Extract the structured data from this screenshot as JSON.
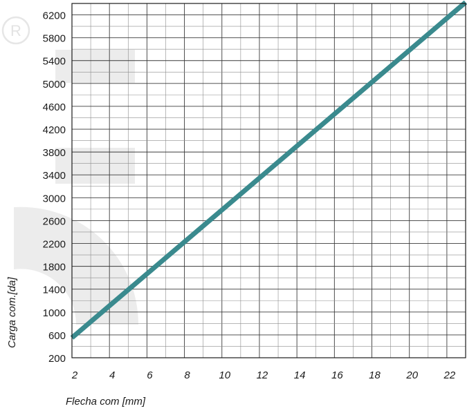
{
  "chart_data": {
    "type": "line",
    "xlabel": "Flecha com [mm]",
    "ylabel": "Carga com.[da]",
    "xlim": [
      2,
      23
    ],
    "ylim": [
      200,
      6400
    ],
    "x_ticks": [
      2,
      4,
      6,
      8,
      10,
      12,
      14,
      16,
      18,
      20,
      22
    ],
    "y_ticks": [
      200,
      600,
      1000,
      1400,
      1800,
      2200,
      2600,
      3000,
      3400,
      3800,
      4200,
      4600,
      5000,
      5400,
      5800,
      6200
    ],
    "grid": true,
    "x": [
      2,
      23
    ],
    "y": [
      550,
      6420
    ],
    "line_color": "#3a8a8e"
  },
  "watermark": {
    "text": "R",
    "color": "#ededed"
  }
}
